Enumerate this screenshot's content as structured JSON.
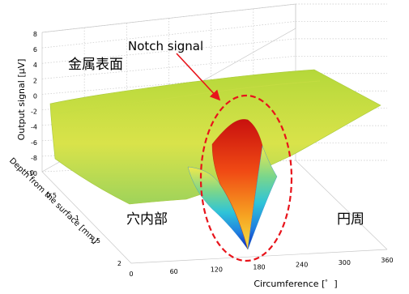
{
  "chart_data": {
    "type": "surface",
    "title": "",
    "xlabel": "Circumference [゜]",
    "ylabel": "Depth from the surface [mm]",
    "zlabel": "Output signal [μV]",
    "x_ticks": [
      "0",
      "60",
      "120",
      "180",
      "240",
      "300",
      "360"
    ],
    "y_ticks": [
      "0",
      "0.5",
      "1",
      "1.5",
      "2"
    ],
    "z_ticks": [
      "8",
      "6",
      "4",
      "2",
      "0",
      "-2",
      "-4",
      "-6",
      "-8",
      "-10"
    ],
    "xlim": [
      0,
      360
    ],
    "ylim": [
      0,
      2
    ],
    "zlim": [
      -10,
      8
    ],
    "grid": true,
    "colormap": "jet",
    "notch": {
      "circumference_deg": 160,
      "peak_uV": 4.5,
      "trough_uV": -10
    },
    "annotations": {
      "notch": "Notch signal",
      "metal_surface": "金属表面",
      "hole_interior": "穴内部",
      "circumference": "円周"
    },
    "colors": {
      "ellipse": "#e8141b",
      "arrow": "#e8141b",
      "grid": "#c8c8c8"
    }
  }
}
